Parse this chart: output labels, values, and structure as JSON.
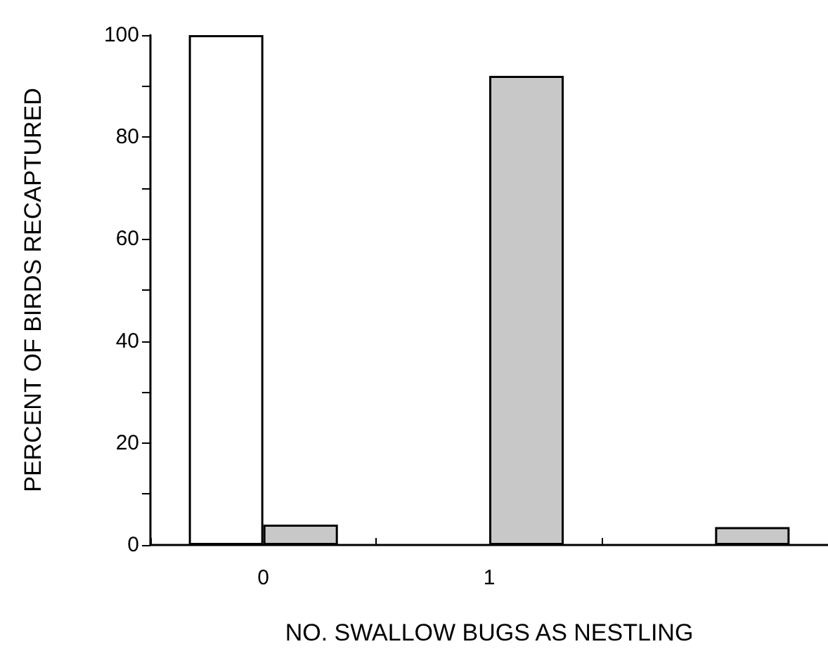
{
  "chart_data": {
    "type": "bar",
    "xlabel": "NO. SWALLOW BUGS AS NESTLING",
    "ylabel": "PERCENT OF BIRDS RECAPTURED",
    "categories": [
      "0",
      "1",
      null
    ],
    "series": [
      {
        "color": "#ffffff",
        "values": [
          100,
          null,
          null
        ]
      },
      {
        "color": "#c8c8c8",
        "values": [
          4,
          92,
          3.5
        ]
      }
    ],
    "ylim": [
      0,
      100
    ],
    "yticks": [
      0,
      {
        "value": 10,
        "label": null
      },
      20,
      {
        "value": 30,
        "label": null
      },
      40,
      {
        "value": 50,
        "label": null
      },
      60,
      {
        "value": 70,
        "label": null
      },
      80,
      {
        "value": 90,
        "label": null
      },
      100
    ],
    "grid": false
  }
}
